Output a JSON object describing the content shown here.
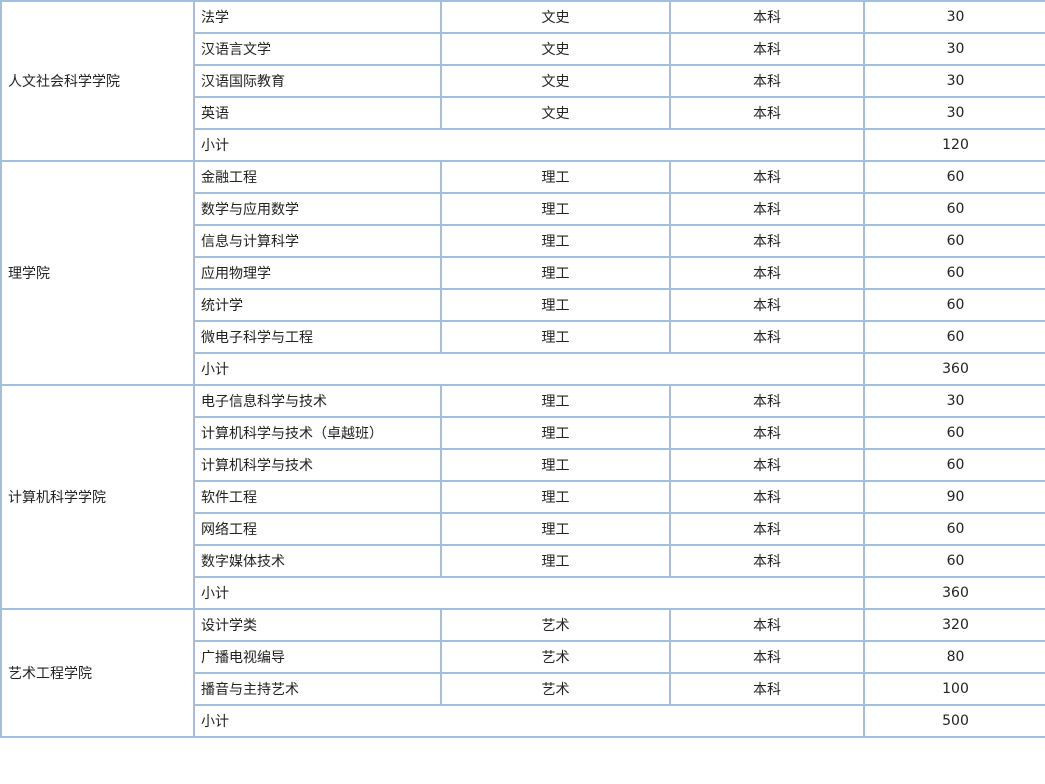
{
  "colleges": [
    {
      "name": "人文社会科学学院",
      "majors": [
        {
          "major": "法学",
          "category": "文史",
          "level": "本科",
          "quota": "30"
        },
        {
          "major": "汉语言文学",
          "category": "文史",
          "level": "本科",
          "quota": "30"
        },
        {
          "major": "汉语国际教育",
          "category": "文史",
          "level": "本科",
          "quota": "30"
        },
        {
          "major": "英语",
          "category": "文史",
          "level": "本科",
          "quota": "30"
        }
      ],
      "subtotal_label": "小计",
      "subtotal": "120"
    },
    {
      "name": "理学院",
      "majors": [
        {
          "major": "金融工程",
          "category": "理工",
          "level": "本科",
          "quota": "60"
        },
        {
          "major": "数学与应用数学",
          "category": "理工",
          "level": "本科",
          "quota": "60"
        },
        {
          "major": "信息与计算科学",
          "category": "理工",
          "level": "本科",
          "quota": "60"
        },
        {
          "major": "应用物理学",
          "category": "理工",
          "level": "本科",
          "quota": "60"
        },
        {
          "major": "统计学",
          "category": "理工",
          "level": "本科",
          "quota": "60"
        },
        {
          "major": "微电子科学与工程",
          "category": "理工",
          "level": "本科",
          "quota": "60"
        }
      ],
      "subtotal_label": "小计",
      "subtotal": "360"
    },
    {
      "name": "计算机科学学院",
      "majors": [
        {
          "major": "电子信息科学与技术",
          "category": "理工",
          "level": "本科",
          "quota": "30"
        },
        {
          "major": "计算机科学与技术（卓越班）",
          "category": "理工",
          "level": "本科",
          "quota": "60"
        },
        {
          "major": "计算机科学与技术",
          "category": "理工",
          "level": "本科",
          "quota": "60"
        },
        {
          "major": "软件工程",
          "category": "理工",
          "level": "本科",
          "quota": "90"
        },
        {
          "major": "网络工程",
          "category": "理工",
          "level": "本科",
          "quota": "60"
        },
        {
          "major": "数字媒体技术",
          "category": "理工",
          "level": "本科",
          "quota": "60"
        }
      ],
      "subtotal_label": "小计",
      "subtotal": "360"
    },
    {
      "name": "艺术工程学院",
      "majors": [
        {
          "major": "设计学类",
          "category": "艺术",
          "level": "本科",
          "quota": "320"
        },
        {
          "major": "广播电视编导",
          "category": "艺术",
          "level": "本科",
          "quota": "80"
        },
        {
          "major": "播音与主持艺术",
          "category": "艺术",
          "level": "本科",
          "quota": "100"
        }
      ],
      "subtotal_label": "小计",
      "subtotal": "500"
    }
  ]
}
